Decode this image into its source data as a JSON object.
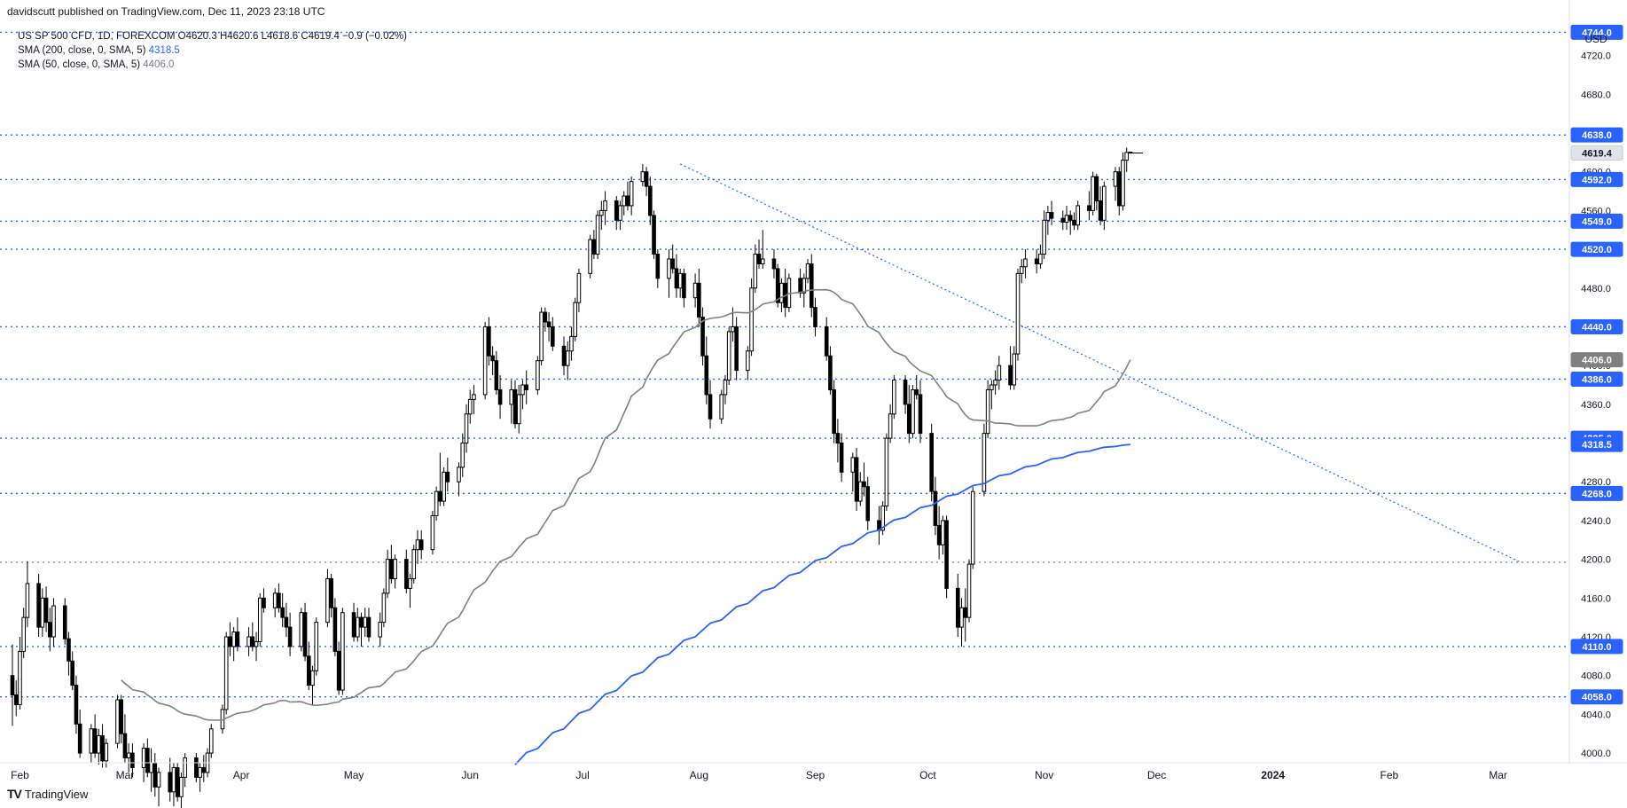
{
  "header": {
    "publisher_line": "davidscutt published on TradingView.com, Dec 11, 2023 23:18 UTC"
  },
  "legend": {
    "symbol_line": "US SP 500 CFD, 1D, FOREXCOM  O4620.3  H4620.6  L4618.6  C4619.4  −0.9 (−0.02%)",
    "sma200_label": "SMA (200, close, 0, SMA, 5)",
    "sma200_value": "4318.5",
    "sma50_label": "SMA (50, close, 0, SMA, 5)",
    "sma50_value": "4406.0"
  },
  "footer": {
    "brand": "TradingView",
    "logo": "TV"
  },
  "colors": {
    "up_candle_body": "#ffffff",
    "down_candle_body": "#000000",
    "level_line": "#2962ff",
    "sma200": "#2962ff",
    "sma50": "#808080",
    "price_badge": "#2962ff"
  },
  "chart_data": {
    "type": "candlestick",
    "currency_label": "USD",
    "y_axis_ticks": [
      4000.0,
      4040.0,
      4080.0,
      4120.0,
      4160.0,
      4200.0,
      4240.0,
      4280.0,
      4320.0,
      4360.0,
      4400.0,
      4440.0,
      4480.0,
      4520.0,
      4560.0,
      4600.0,
      4640.0,
      4680.0,
      4720.0
    ],
    "ylim": [
      3990,
      4770
    ],
    "x_axis_ticks": [
      "Feb",
      "Mar",
      "Apr",
      "May",
      "Jun",
      "Jul",
      "Aug",
      "Sep",
      "Oct",
      "Nov",
      "Dec",
      "2024",
      "Feb",
      "Mar"
    ],
    "horizontal_levels": [
      {
        "value": 4744.0,
        "label": "4744.0"
      },
      {
        "value": 4638.0,
        "label": "4638.0"
      },
      {
        "value": 4592.0,
        "label": "4592.0"
      },
      {
        "value": 4549.0,
        "label": "4549.0"
      },
      {
        "value": 4520.0,
        "label": "4520.0"
      },
      {
        "value": 4440.0,
        "label": "4440.0"
      },
      {
        "value": 4386.0,
        "label": "4386.0"
      },
      {
        "value": 4325.0,
        "label": "4325.0"
      },
      {
        "value": 4268.0,
        "label": "4268.0"
      },
      {
        "value": 4197.0,
        "label": ""
      },
      {
        "value": 4110.0,
        "label": "4110.0"
      },
      {
        "value": 4058.0,
        "label": "4058.0"
      }
    ],
    "trendline": {
      "start": {
        "date": "2023-07-27",
        "value": 4608
      },
      "end": {
        "date": "2024-03-07",
        "value": 4197
      }
    },
    "price_markers": [
      {
        "value": 4619.4,
        "label": "4619.4",
        "style": "last"
      },
      {
        "value": 4406.0,
        "label": "4406.0",
        "style": "sma50"
      },
      {
        "value": 4318.5,
        "label": "4318.5",
        "style": "sma200"
      }
    ],
    "candles_key": [
      "open",
      "high",
      "low",
      "close"
    ],
    "candles": [
      [
        4080,
        4112,
        4028,
        4060
      ],
      [
        4060,
        4075,
        4038,
        4050
      ],
      [
        4050,
        4120,
        4045,
        4105
      ],
      [
        4105,
        4150,
        4098,
        4140
      ],
      [
        4140,
        4198,
        4130,
        4175
      ],
      [
        4175,
        4185,
        4120,
        4130
      ],
      [
        4130,
        4170,
        4120,
        4160
      ],
      [
        4160,
        4172,
        4125,
        4135
      ],
      [
        4135,
        4150,
        4105,
        4120
      ],
      [
        4120,
        4160,
        4110,
        4152
      ],
      [
        4152,
        4160,
        4112,
        4118
      ],
      [
        4118,
        4125,
        4080,
        4095
      ],
      [
        4095,
        4105,
        4065,
        4070
      ],
      [
        4070,
        4080,
        4020,
        4030
      ],
      [
        4030,
        4045,
        3995,
        4000
      ],
      [
        4000,
        4030,
        3990,
        4025
      ],
      [
        4025,
        4040,
        3995,
        4000
      ],
      [
        4000,
        4025,
        3988,
        4018
      ],
      [
        4018,
        4030,
        3985,
        3992
      ],
      [
        3992,
        4015,
        3985,
        4010
      ],
      [
        4010,
        4060,
        4005,
        4055
      ],
      [
        4055,
        4060,
        4010,
        4020
      ],
      [
        4020,
        4040,
        3990,
        3995
      ],
      [
        3995,
        4010,
        3980,
        4000
      ],
      [
        4000,
        4010,
        3975,
        3985
      ],
      [
        3985,
        4010,
        3970,
        4005
      ],
      [
        4005,
        4015,
        3975,
        3980
      ],
      [
        3980,
        4005,
        3960,
        3990
      ],
      [
        3990,
        4000,
        3955,
        3965
      ],
      [
        3965,
        3985,
        3945,
        3980
      ],
      [
        3980,
        3995,
        3950,
        3960
      ],
      [
        3960,
        3990,
        3945,
        3985
      ],
      [
        3985,
        3990,
        3950,
        3955
      ],
      [
        3955,
        3980,
        3935,
        3975
      ],
      [
        3975,
        4000,
        3965,
        3995
      ],
      [
        3995,
        4000,
        3970,
        3975
      ],
      [
        3975,
        3990,
        3960,
        3985
      ],
      [
        3985,
        3998,
        3970,
        3980
      ],
      [
        3980,
        4005,
        3975,
        4000
      ],
      [
        4000,
        4030,
        3995,
        4025
      ],
      [
        4025,
        4050,
        4020,
        4045
      ],
      [
        4045,
        4125,
        4040,
        4120
      ],
      [
        4120,
        4135,
        4100,
        4110
      ],
      [
        4110,
        4130,
        4095,
        4125
      ],
      [
        4125,
        4140,
        4105,
        4110
      ],
      [
        4110,
        4130,
        4100,
        4120
      ],
      [
        4120,
        4135,
        4105,
        4110
      ],
      [
        4110,
        4125,
        4095,
        4115
      ],
      [
        4115,
        4165,
        4110,
        4160
      ],
      [
        4160,
        4170,
        4145,
        4150
      ],
      [
        4150,
        4170,
        4140,
        4165
      ],
      [
        4165,
        4175,
        4145,
        4150
      ],
      [
        4150,
        4165,
        4130,
        4140
      ],
      [
        4140,
        4155,
        4120,
        4130
      ],
      [
        4130,
        4145,
        4100,
        4110
      ],
      [
        4110,
        4150,
        4105,
        4145
      ],
      [
        4145,
        4155,
        4095,
        4100
      ],
      [
        4100,
        4115,
        4065,
        4070
      ],
      [
        4070,
        4090,
        4050,
        4085
      ],
      [
        4085,
        4140,
        4080,
        4135
      ],
      [
        4135,
        4190,
        4130,
        4180
      ],
      [
        4180,
        4185,
        4140,
        4150
      ],
      [
        4150,
        4160,
        4100,
        4105
      ],
      [
        4105,
        4115,
        4060,
        4065
      ],
      [
        4065,
        4150,
        4060,
        4145
      ],
      [
        4145,
        4155,
        4115,
        4120
      ],
      [
        4120,
        4150,
        4115,
        4140
      ],
      [
        4140,
        4145,
        4110,
        4130
      ],
      [
        4130,
        4150,
        4120,
        4140
      ],
      [
        4140,
        4150,
        4115,
        4120
      ],
      [
        4120,
        4145,
        4110,
        4135
      ],
      [
        4135,
        4170,
        4130,
        4165
      ],
      [
        4165,
        4210,
        4160,
        4200
      ],
      [
        4200,
        4215,
        4175,
        4180
      ],
      [
        4180,
        4205,
        4170,
        4200
      ],
      [
        4200,
        4210,
        4165,
        4170
      ],
      [
        4170,
        4185,
        4150,
        4180
      ],
      [
        4180,
        4215,
        4175,
        4210
      ],
      [
        4210,
        4230,
        4195,
        4220
      ],
      [
        4220,
        4230,
        4200,
        4210
      ],
      [
        4210,
        4250,
        4205,
        4245
      ],
      [
        4245,
        4275,
        4240,
        4270
      ],
      [
        4270,
        4310,
        4255,
        4260
      ],
      [
        4260,
        4295,
        4255,
        4290
      ],
      [
        4290,
        4305,
        4270,
        4280
      ],
      [
        4280,
        4300,
        4265,
        4295
      ],
      [
        4295,
        4330,
        4285,
        4320
      ],
      [
        4320,
        4360,
        4310,
        4350
      ],
      [
        4350,
        4375,
        4340,
        4365
      ],
      [
        4365,
        4380,
        4350,
        4370
      ],
      [
        4370,
        4445,
        4365,
        4440
      ],
      [
        4440,
        4450,
        4400,
        4410
      ],
      [
        4410,
        4420,
        4390,
        4405
      ],
      [
        4405,
        4415,
        4370,
        4375
      ],
      [
        4375,
        4390,
        4345,
        4360
      ],
      [
        4360,
        4385,
        4340,
        4375
      ],
      [
        4375,
        4385,
        4335,
        4340
      ],
      [
        4340,
        4380,
        4330,
        4370
      ],
      [
        4370,
        4385,
        4355,
        4380
      ],
      [
        4380,
        4395,
        4360,
        4375
      ],
      [
        4375,
        4410,
        4370,
        4405
      ],
      [
        4405,
        4460,
        4400,
        4455
      ],
      [
        4455,
        4460,
        4435,
        4445
      ],
      [
        4445,
        4455,
        4425,
        4440
      ],
      [
        4440,
        4450,
        4415,
        4420
      ],
      [
        4420,
        4430,
        4390,
        4400
      ],
      [
        4400,
        4425,
        4385,
        4415
      ],
      [
        4415,
        4440,
        4405,
        4430
      ],
      [
        4430,
        4470,
        4425,
        4465
      ],
      [
        4465,
        4500,
        4455,
        4495
      ],
      [
        4495,
        4535,
        4490,
        4530
      ],
      [
        4530,
        4540,
        4510,
        4515
      ],
      [
        4515,
        4560,
        4510,
        4555
      ],
      [
        4555,
        4570,
        4540,
        4560
      ],
      [
        4560,
        4580,
        4545,
        4570
      ],
      [
        4570,
        4575,
        4540,
        4550
      ],
      [
        4550,
        4570,
        4540,
        4565
      ],
      [
        4565,
        4580,
        4555,
        4575
      ],
      [
        4575,
        4590,
        4560,
        4565
      ],
      [
        4565,
        4595,
        4555,
        4590
      ],
      [
        4590,
        4608,
        4585,
        4600
      ],
      [
        4600,
        4605,
        4575,
        4585
      ],
      [
        4585,
        4595,
        4545,
        4555
      ],
      [
        4555,
        4560,
        4510,
        4515
      ],
      [
        4515,
        4520,
        4480,
        4490
      ],
      [
        4490,
        4520,
        4470,
        4510
      ],
      [
        4510,
        4525,
        4495,
        4500
      ],
      [
        4500,
        4515,
        4470,
        4480
      ],
      [
        4480,
        4500,
        4470,
        4495
      ],
      [
        4495,
        4500,
        4460,
        4470
      ],
      [
        4470,
        4495,
        4460,
        4485
      ],
      [
        4485,
        4500,
        4440,
        4450
      ],
      [
        4450,
        4460,
        4400,
        4410
      ],
      [
        4410,
        4430,
        4360,
        4370
      ],
      [
        4370,
        4385,
        4335,
        4345
      ],
      [
        4345,
        4375,
        4340,
        4370
      ],
      [
        4370,
        4390,
        4360,
        4385
      ],
      [
        4385,
        4440,
        4380,
        4435
      ],
      [
        4435,
        4460,
        4425,
        4440
      ],
      [
        4440,
        4450,
        4385,
        4395
      ],
      [
        4395,
        4420,
        4385,
        4415
      ],
      [
        4415,
        4490,
        4410,
        4480
      ],
      [
        4480,
        4525,
        4475,
        4515
      ],
      [
        4515,
        4530,
        4500,
        4505
      ],
      [
        4505,
        4540,
        4500,
        4510
      ],
      [
        4510,
        4520,
        4490,
        4500
      ],
      [
        4500,
        4505,
        4460,
        4465
      ],
      [
        4465,
        4490,
        4455,
        4485
      ],
      [
        4485,
        4500,
        4450,
        4460
      ],
      [
        4460,
        4495,
        4455,
        4490
      ],
      [
        4490,
        4500,
        4470,
        4475
      ],
      [
        4475,
        4495,
        4460,
        4490
      ],
      [
        4490,
        4510,
        4485,
        4505
      ],
      [
        4505,
        4515,
        4450,
        4460
      ],
      [
        4460,
        4470,
        4430,
        4440
      ],
      [
        4440,
        4450,
        4405,
        4410
      ],
      [
        4410,
        4420,
        4370,
        4375
      ],
      [
        4375,
        4385,
        4320,
        4330
      ],
      [
        4330,
        4345,
        4300,
        4320
      ],
      [
        4320,
        4330,
        4280,
        4290
      ],
      [
        4290,
        4310,
        4270,
        4305
      ],
      [
        4305,
        4315,
        4250,
        4260
      ],
      [
        4260,
        4290,
        4255,
        4280
      ],
      [
        4280,
        4300,
        4265,
        4275
      ],
      [
        4275,
        4285,
        4230,
        4240
      ],
      [
        4240,
        4255,
        4215,
        4230
      ],
      [
        4230,
        4260,
        4225,
        4255
      ],
      [
        4255,
        4330,
        4250,
        4325
      ],
      [
        4325,
        4360,
        4320,
        4350
      ],
      [
        4350,
        4390,
        4345,
        4385
      ],
      [
        4385,
        4390,
        4350,
        4360
      ],
      [
        4360,
        4380,
        4320,
        4330
      ],
      [
        4330,
        4380,
        4325,
        4375
      ],
      [
        4375,
        4390,
        4365,
        4370
      ],
      [
        4370,
        4385,
        4320,
        4330
      ],
      [
        4330,
        4340,
        4260,
        4270
      ],
      [
        4270,
        4285,
        4225,
        4235
      ],
      [
        4235,
        4255,
        4200,
        4215
      ],
      [
        4215,
        4245,
        4205,
        4240
      ],
      [
        4240,
        4245,
        4160,
        4170
      ],
      [
        4170,
        4185,
        4120,
        4130
      ],
      [
        4130,
        4160,
        4110,
        4150
      ],
      [
        4150,
        4170,
        4115,
        4140
      ],
      [
        4140,
        4200,
        4135,
        4195
      ],
      [
        4195,
        4275,
        4190,
        4270
      ],
      [
        4270,
        4340,
        4265,
        4330
      ],
      [
        4330,
        4385,
        4325,
        4375
      ],
      [
        4375,
        4385,
        4355,
        4380
      ],
      [
        4380,
        4395,
        4370,
        4385
      ],
      [
        4385,
        4410,
        4375,
        4400
      ],
      [
        4400,
        4420,
        4375,
        4380
      ],
      [
        4380,
        4420,
        4375,
        4412
      ],
      [
        4412,
        4500,
        4405,
        4495
      ],
      [
        4495,
        4510,
        4485,
        4502
      ],
      [
        4502,
        4520,
        4490,
        4510
      ],
      [
        4510,
        4520,
        4495,
        4505
      ],
      [
        4505,
        4525,
        4500,
        4515
      ],
      [
        4515,
        4560,
        4510,
        4550
      ],
      [
        4550,
        4565,
        4535,
        4558
      ],
      [
        4558,
        4570,
        4545,
        4552
      ],
      [
        4552,
        4560,
        4540,
        4548
      ],
      [
        4548,
        4565,
        4540,
        4555
      ],
      [
        4555,
        4560,
        4535,
        4550
      ],
      [
        4550,
        4558,
        4540,
        4545
      ],
      [
        4545,
        4570,
        4540,
        4565
      ],
      [
        4565,
        4580,
        4550,
        4560
      ],
      [
        4560,
        4600,
        4555,
        4595
      ],
      [
        4595,
        4598,
        4560,
        4570
      ],
      [
        4570,
        4585,
        4545,
        4550
      ],
      [
        4550,
        4590,
        4540,
        4585
      ],
      [
        4585,
        4605,
        4570,
        4600
      ],
      [
        4600,
        4605,
        4555,
        4565
      ],
      [
        4565,
        4620,
        4560,
        4612
      ],
      [
        4612,
        4625,
        4600,
        4620
      ],
      [
        4620.3,
        4620.6,
        4618.6,
        4619.4
      ]
    ],
    "first_candle_date": "2023-01-30",
    "sma200": {
      "start": "2023-06-13",
      "start_value": 3988,
      "end": "2023-12-11",
      "end_value": 4318.5
    },
    "sma50": {
      "start": "2023-02-28",
      "start_value": 3980,
      "end": "2023-12-11",
      "end_value": 4406.0
    }
  }
}
